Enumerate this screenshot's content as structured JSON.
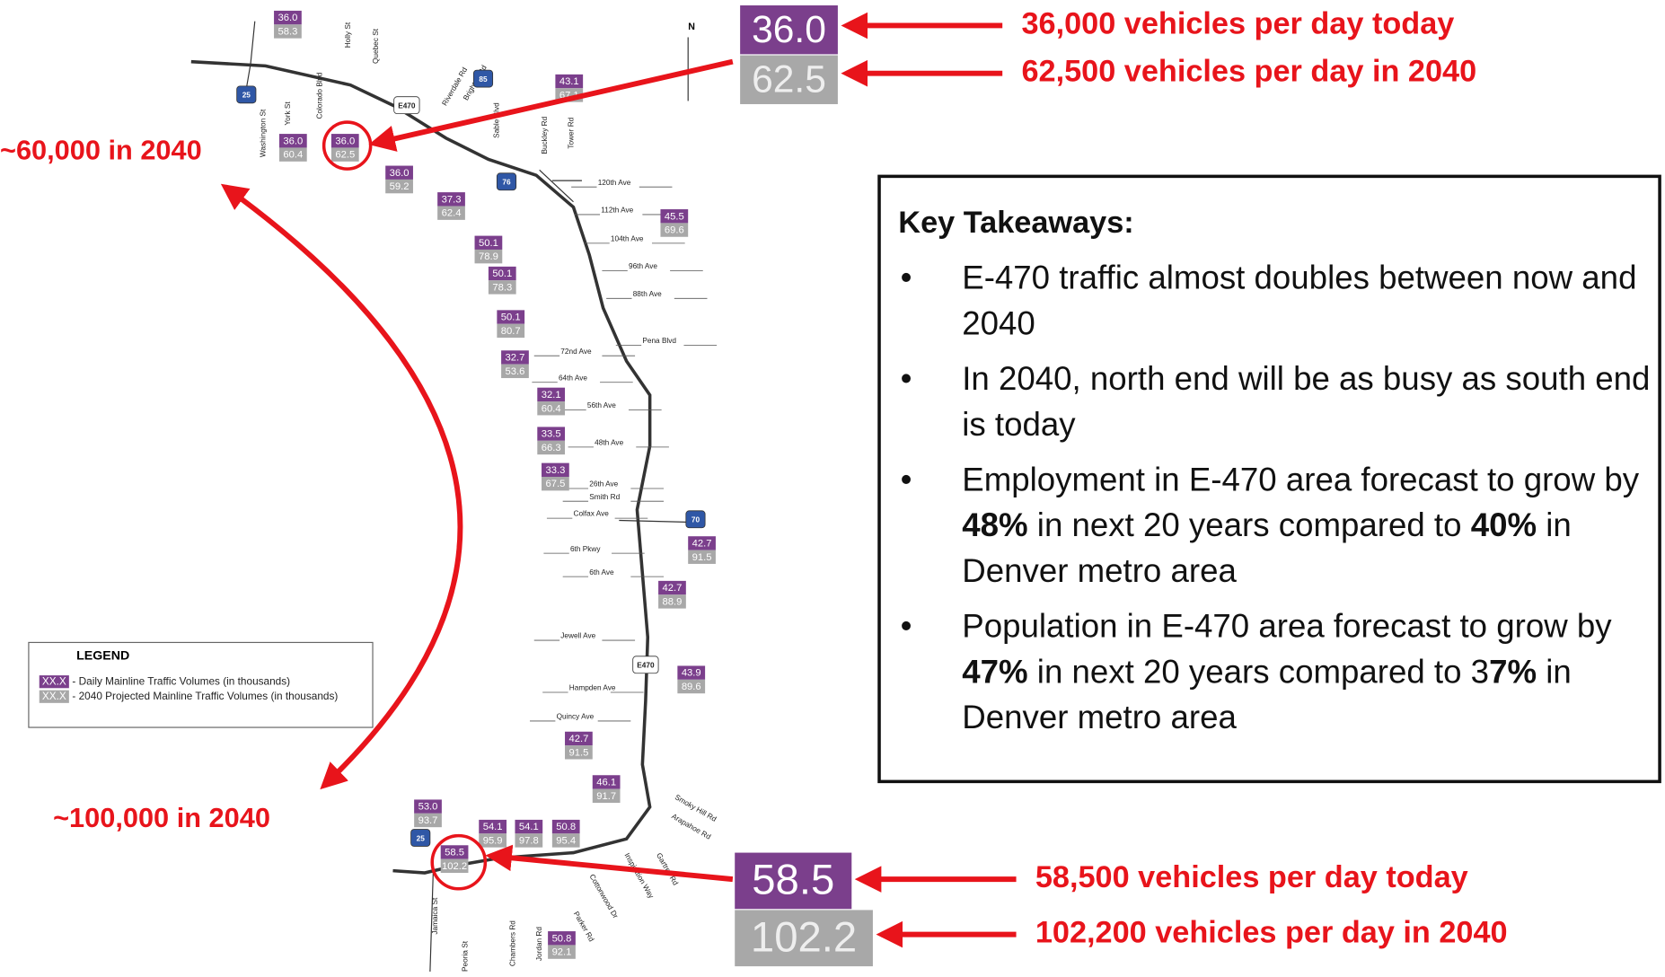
{
  "callouts": [
    {
      "today": "36.0",
      "future": "62.5",
      "today_text": "36,000 vehicles per day today",
      "future_text": "62,500 vehicles per day in 2040"
    },
    {
      "today": "58.5",
      "future": "102.2",
      "today_text": "58,500 vehicles per day today",
      "future_text": "102,200 vehicles per day in 2040"
    }
  ],
  "annotations": [
    "~60,000 in 2040",
    "~100,000 in 2040"
  ],
  "takeaways": {
    "title": "Key Takeaways:",
    "bullets": [
      [
        {
          "text": "E-470 traffic almost doubles between now and 2040"
        }
      ],
      [
        {
          "text": "In 2040, north end will be as busy as south end is today"
        }
      ],
      [
        {
          "text": "Employment in E-470 area forecast to grow by "
        },
        {
          "text": "48%",
          "bold": true
        },
        {
          "text": " in next 20 years compared to "
        },
        {
          "text": "40%",
          "bold": true
        },
        {
          "text": " in Denver metro area"
        }
      ],
      [
        {
          "text": "Population in E-470 area forecast to grow by "
        },
        {
          "text": "47%",
          "bold": true
        },
        {
          "text": " in next 20 years compared to 3"
        },
        {
          "text": "7%",
          "bold": true
        },
        {
          "text": " in Denver metro area"
        }
      ]
    ]
  },
  "legend": {
    "title": "LEGEND",
    "items": [
      {
        "swatch": "XX.X",
        "text": "- Daily Mainline Traffic Volumes (in thousands)"
      },
      {
        "swatch": "XX.X",
        "text": "- 2040 Projected Mainline Traffic Volumes (in thousands)"
      }
    ]
  },
  "map": {
    "north": "N",
    "streets": [
      "120th Ave",
      "112th Ave",
      "104th Ave",
      "96th Ave",
      "88th Ave",
      "Pena Blvd",
      "72nd Ave",
      "64th Ave",
      "56th Ave",
      "48th Ave",
      "26th Ave",
      "Smith Rd",
      "Colfax Ave",
      "6th Pkwy",
      "6th Ave",
      "Jewell Ave",
      "Hampden Ave",
      "Quincy Ave"
    ],
    "roads": [
      "Washington St",
      "York St",
      "Colorado Blvd",
      "Holly St",
      "Quebec St",
      "Riverdale Rd",
      "Brighton Rd",
      "Sable Blvd",
      "Buckley Rd",
      "Tower Rd",
      "Smoky Hill Rd",
      "Arapahoe Rd",
      "Gartrell Rd",
      "Inspiration Way",
      "Cottonwood Dr",
      "Parker Rd",
      "Jordan Rd",
      "Chambers Rd",
      "Peoria St",
      "Jamaica St"
    ],
    "shields": [
      "25",
      "85",
      "E470",
      "76",
      "70",
      "E470",
      "25"
    ],
    "stations": [
      {
        "today": "36.0",
        "future": "58.3"
      },
      {
        "today": "36.0",
        "future": "60.4"
      },
      {
        "today": "36.0",
        "future": "62.5"
      },
      {
        "today": "36.0",
        "future": "59.2"
      },
      {
        "today": "37.3",
        "future": "62.4"
      },
      {
        "today": "43.1",
        "future": "67.1"
      },
      {
        "today": "45.5",
        "future": "69.6"
      },
      {
        "today": "50.1",
        "future": "78.9"
      },
      {
        "today": "50.1",
        "future": "78.3"
      },
      {
        "today": "50.1",
        "future": "80.7"
      },
      {
        "today": "32.7",
        "future": "53.6"
      },
      {
        "today": "32.1",
        "future": "60.4"
      },
      {
        "today": "33.5",
        "future": "66.3"
      },
      {
        "today": "33.3",
        "future": "67.5"
      },
      {
        "today": "42.7",
        "future": "91.5"
      },
      {
        "today": "42.7",
        "future": "88.9"
      },
      {
        "today": "43.9",
        "future": "89.6"
      },
      {
        "today": "42.7",
        "future": "91.5"
      },
      {
        "today": "46.1",
        "future": "91.7"
      },
      {
        "today": "53.0",
        "future": "93.7"
      },
      {
        "today": "58.5",
        "future": "102.2"
      },
      {
        "today": "54.1",
        "future": "95.9"
      },
      {
        "today": "54.1",
        "future": "97.8"
      },
      {
        "today": "50.8",
        "future": "95.4"
      },
      {
        "today": "50.8",
        "future": "92.1"
      }
    ]
  }
}
